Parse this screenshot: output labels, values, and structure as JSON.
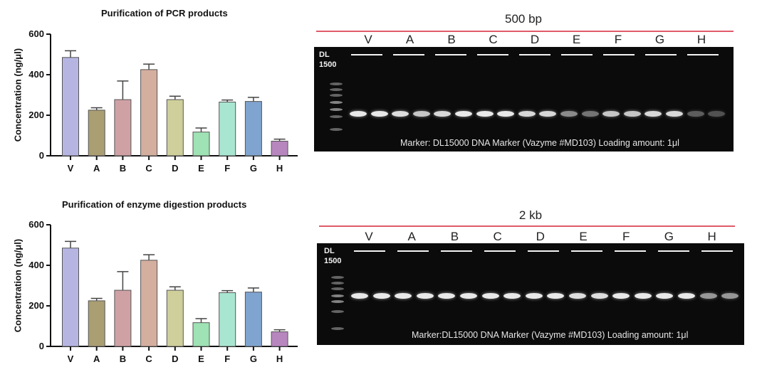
{
  "chart_data": [
    {
      "type": "bar",
      "title": "Purification of PCR products",
      "xlabel": "",
      "ylabel": "Concentration (ng/μl)",
      "ylim": [
        0,
        600
      ],
      "yticks": [
        "0",
        "200",
        "400",
        "600"
      ],
      "categories": [
        "V",
        "A",
        "B",
        "C",
        "D",
        "E",
        "F",
        "G",
        "H"
      ],
      "values": [
        485,
        225,
        277,
        425,
        277,
        117,
        265,
        268,
        72
      ],
      "errors": [
        33,
        12,
        92,
        27,
        17,
        20,
        10,
        20,
        10
      ],
      "colors": [
        "#b6b5e2",
        "#aa9e73",
        "#cfa1a5",
        "#d4ae9f",
        "#cfcf9c",
        "#9fe2b3",
        "#a9e6d1",
        "#7fa4cf",
        "#b886bf"
      ],
      "grid": false,
      "error_bars": true
    },
    {
      "type": "bar",
      "title": "Purification of enzyme digestion products",
      "xlabel": "",
      "ylabel": "Concentration (ng/μl)",
      "ylim": [
        0,
        600
      ],
      "yticks": [
        "0",
        "200",
        "400",
        "600"
      ],
      "categories": [
        "V",
        "A",
        "B",
        "C",
        "D",
        "E",
        "F",
        "G",
        "H"
      ],
      "values": [
        485,
        225,
        277,
        425,
        277,
        117,
        265,
        268,
        72
      ],
      "errors": [
        33,
        12,
        92,
        27,
        17,
        20,
        10,
        20,
        10
      ],
      "colors": [
        "#b6b5e2",
        "#aa9e73",
        "#cfa1a5",
        "#d4ae9f",
        "#cfcf9c",
        "#9fe2b3",
        "#a9e6d1",
        "#7fa4cf",
        "#b886bf"
      ],
      "grid": false,
      "error_bars": true
    }
  ],
  "gels": [
    {
      "title": "500 bp",
      "lanes": [
        "V",
        "A",
        "B",
        "C",
        "D",
        "E",
        "F",
        "G",
        "H"
      ],
      "ladder_label_1": "DL",
      "ladder_label_2": "1500",
      "caption": "Marker: DL15000 DNA Marker (Vazyme #MD103)  Loading amount: 1μl",
      "band_intensity": [
        0.95,
        0.95,
        0.9,
        0.8,
        0.88,
        0.95,
        0.95,
        0.95,
        0.88,
        0.88,
        0.55,
        0.45,
        0.8,
        0.8,
        0.88,
        0.88,
        0.35,
        0.3
      ]
    },
    {
      "title": "2 kb",
      "lanes": [
        "V",
        "A",
        "B",
        "C",
        "D",
        "E",
        "F",
        "G",
        "H"
      ],
      "ladder_label_1": "DL",
      "ladder_label_2": "1500",
      "caption": "Marker:DL15000 DNA Marker (Vazyme #MD103)  Loading amount: 1μl",
      "band_intensity": [
        0.95,
        0.95,
        0.95,
        0.95,
        0.95,
        0.95,
        0.95,
        0.95,
        0.95,
        0.95,
        0.9,
        0.9,
        0.95,
        0.95,
        0.95,
        0.95,
        0.6,
        0.6
      ]
    }
  ]
}
